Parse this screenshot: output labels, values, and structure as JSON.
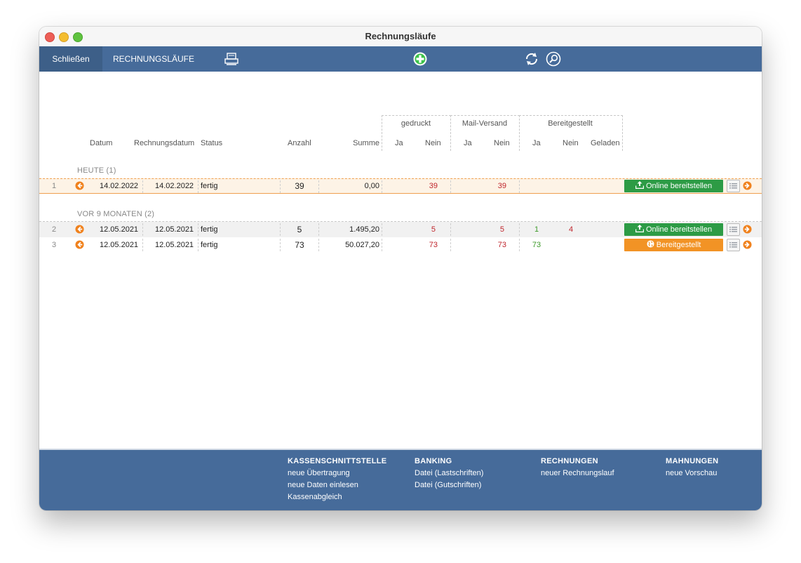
{
  "window": {
    "title": "Rechnungsläufe"
  },
  "toolbar": {
    "close_label": "Schließen",
    "title": "RECHNUNGSLÄUFE",
    "print_icon": "printer-icon",
    "add_icon": "plus-circle-icon",
    "refresh_icon": "refresh-icon",
    "search_icon": "search-icon"
  },
  "table": {
    "headers": {
      "datum": "Datum",
      "rechnungsdatum": "Rechnungsdatum",
      "status": "Status",
      "anzahl": "Anzahl",
      "summe": "Summe"
    },
    "groups": {
      "gedruckt": {
        "title": "gedruckt",
        "ja": "Ja",
        "nein": "Nein"
      },
      "mail": {
        "title": "Mail-Versand",
        "ja": "Ja",
        "nein": "Nein"
      },
      "bereit": {
        "title": "Bereitgestellt",
        "ja": "Ja",
        "nein": "Nein",
        "geladen": "Geladen"
      }
    },
    "sections": [
      {
        "label": "HEUTE (1)"
      },
      {
        "label": "VOR 9 MONATEN (2)"
      }
    ],
    "rows": [
      {
        "no": "1",
        "datum": "14.02.2022",
        "rechnungsdatum": "14.02.2022",
        "status": "fertig",
        "anzahl": "39",
        "summe": "0,00",
        "gedruckt_nein": "39",
        "mail_nein": "39",
        "bereit_ja": "",
        "bereit_nein": "",
        "action": "Online bereitstellen"
      },
      {
        "no": "2",
        "datum": "12.05.2021",
        "rechnungsdatum": "12.05.2021",
        "status": "fertig",
        "anzahl": "5",
        "summe": "1.495,20",
        "gedruckt_nein": "5",
        "mail_nein": "5",
        "bereit_ja": "1",
        "bereit_nein": "4",
        "action": "Online bereitstellen"
      },
      {
        "no": "3",
        "datum": "12.05.2021",
        "rechnungsdatum": "12.05.2021",
        "status": "fertig",
        "anzahl": "73",
        "summe": "50.027,20",
        "gedruckt_nein": "73",
        "mail_nein": "73",
        "bereit_ja": "73",
        "bereit_nein": "",
        "action": "Bereitgestellt"
      }
    ]
  },
  "footer": {
    "kassen": {
      "title": "KASSENSCHNITTSTELLE",
      "items": [
        "neue Übertragung",
        "neue Daten einlesen",
        "Kassenabgleich"
      ]
    },
    "banking": {
      "title": "BANKING",
      "items": [
        "Datei (Lastschriften)",
        "Datei (Gutschriften)"
      ]
    },
    "rechnungen": {
      "title": "RECHNUNGEN",
      "items": [
        "neuer Rechnungslauf"
      ]
    },
    "mahnungen": {
      "title": "MAHNUNGEN",
      "items": [
        "neue Vorschau"
      ]
    }
  },
  "colors": {
    "toolbar": "#466b9a",
    "green_button": "#2d9b45",
    "orange_button": "#f29325",
    "accent_orange": "#f0821e"
  }
}
